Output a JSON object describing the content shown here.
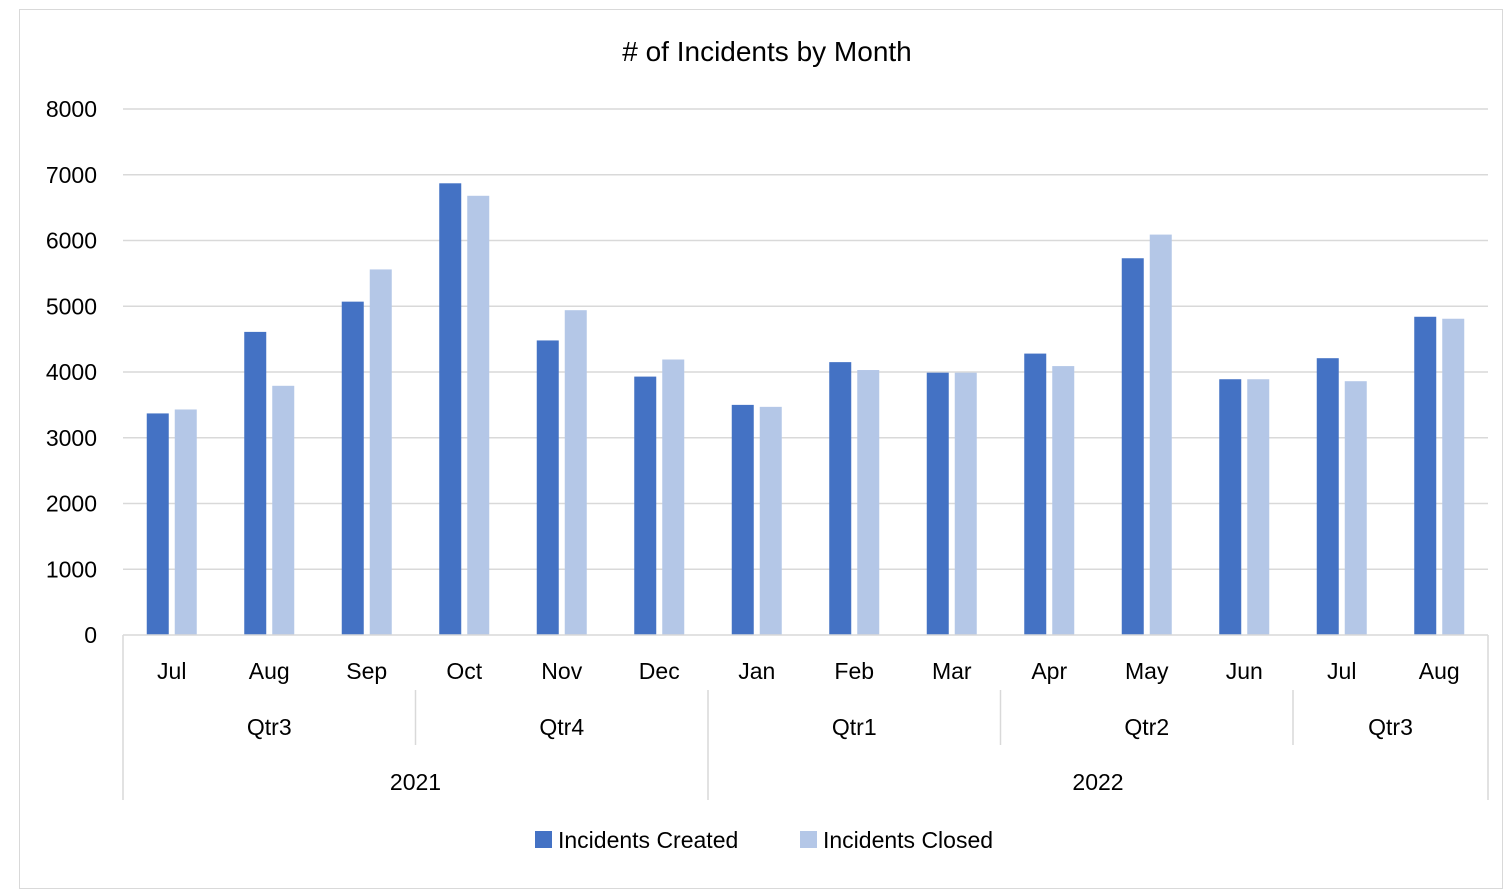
{
  "chart_data": {
    "type": "bar",
    "title": "# of Incidents by Month",
    "ylim": [
      0,
      8000
    ],
    "yticks": [
      0,
      1000,
      2000,
      3000,
      4000,
      5000,
      6000,
      7000,
      8000
    ],
    "grid": true,
    "legend_position": "bottom",
    "categories": [
      "Jul",
      "Aug",
      "Sep",
      "Oct",
      "Nov",
      "Dec",
      "Jan",
      "Feb",
      "Mar",
      "Apr",
      "May",
      "Jun",
      "Jul",
      "Aug"
    ],
    "quarters": [
      {
        "label": "Qtr3",
        "count": 3
      },
      {
        "label": "Qtr4",
        "count": 3
      },
      {
        "label": "Qtr1",
        "count": 3
      },
      {
        "label": "Qtr2",
        "count": 3
      },
      {
        "label": "Qtr3",
        "count": 2
      }
    ],
    "years": [
      {
        "label": "2021",
        "count": 6
      },
      {
        "label": "2022",
        "count": 8
      }
    ],
    "series": [
      {
        "name": "Incidents Created",
        "color": "#4472C4",
        "values": [
          3370,
          4610,
          5070,
          6870,
          4480,
          3930,
          3500,
          4150,
          3990,
          4280,
          5730,
          3890,
          4210,
          4840
        ]
      },
      {
        "name": "Incidents Closed",
        "color": "#B4C7E7",
        "values": [
          3430,
          3790,
          5560,
          6680,
          4940,
          4190,
          3470,
          4030,
          3990,
          4090,
          6090,
          3890,
          3860,
          4810
        ]
      }
    ]
  }
}
